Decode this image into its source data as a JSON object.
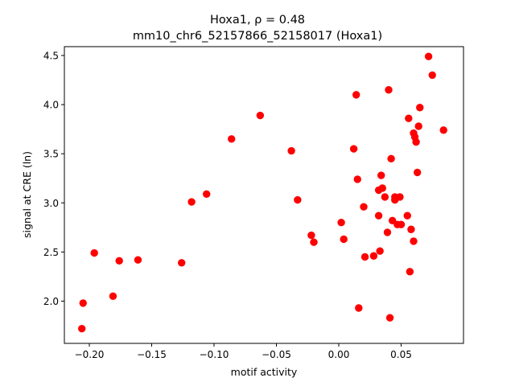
{
  "chart_data": {
    "type": "scatter",
    "title": "Hoxa1, ρ = 0.48",
    "subtitle": "mm10_chr6_52157866_52158017 (Hoxa1)",
    "xlabel": "motif activity",
    "ylabel": "signal at CRE (ln)",
    "xlim": [
      -0.22,
      0.1
    ],
    "ylim": [
      1.57,
      4.59
    ],
    "xticks": [
      -0.2,
      -0.15,
      -0.1,
      -0.05,
      0.0,
      0.05
    ],
    "xtick_labels": [
      "−0.20",
      "−0.15",
      "−0.10",
      "−0.05",
      "0.00",
      "0.05"
    ],
    "yticks": [
      2.0,
      2.5,
      3.0,
      3.5,
      4.0,
      4.5
    ],
    "ytick_labels": [
      "2.0",
      "2.5",
      "3.0",
      "3.5",
      "4.0",
      "4.5"
    ],
    "grid": false,
    "marker_color": "#ff0000",
    "points": [
      {
        "x": -0.206,
        "y": 1.72
      },
      {
        "x": -0.205,
        "y": 1.98
      },
      {
        "x": -0.196,
        "y": 2.49
      },
      {
        "x": -0.181,
        "y": 2.05
      },
      {
        "x": -0.176,
        "y": 2.41
      },
      {
        "x": -0.161,
        "y": 2.42
      },
      {
        "x": -0.126,
        "y": 2.39
      },
      {
        "x": -0.118,
        "y": 3.01
      },
      {
        "x": -0.106,
        "y": 3.09
      },
      {
        "x": -0.086,
        "y": 3.65
      },
      {
        "x": -0.063,
        "y": 3.89
      },
      {
        "x": -0.038,
        "y": 3.53
      },
      {
        "x": -0.033,
        "y": 3.03
      },
      {
        "x": -0.022,
        "y": 2.67
      },
      {
        "x": -0.02,
        "y": 2.6
      },
      {
        "x": 0.002,
        "y": 2.8
      },
      {
        "x": 0.004,
        "y": 2.63
      },
      {
        "x": 0.012,
        "y": 3.55
      },
      {
        "x": 0.014,
        "y": 4.1
      },
      {
        "x": 0.015,
        "y": 3.24
      },
      {
        "x": 0.016,
        "y": 1.93
      },
      {
        "x": 0.02,
        "y": 2.96
      },
      {
        "x": 0.021,
        "y": 2.45
      },
      {
        "x": 0.028,
        "y": 2.46
      },
      {
        "x": 0.032,
        "y": 2.87
      },
      {
        "x": 0.032,
        "y": 3.13
      },
      {
        "x": 0.033,
        "y": 2.51
      },
      {
        "x": 0.034,
        "y": 3.28
      },
      {
        "x": 0.035,
        "y": 3.15
      },
      {
        "x": 0.037,
        "y": 3.06
      },
      {
        "x": 0.039,
        "y": 2.7
      },
      {
        "x": 0.04,
        "y": 4.15
      },
      {
        "x": 0.041,
        "y": 1.83
      },
      {
        "x": 0.042,
        "y": 3.45
      },
      {
        "x": 0.043,
        "y": 2.82
      },
      {
        "x": 0.045,
        "y": 3.06
      },
      {
        "x": 0.045,
        "y": 3.03
      },
      {
        "x": 0.047,
        "y": 2.78
      },
      {
        "x": 0.049,
        "y": 3.06
      },
      {
        "x": 0.05,
        "y": 2.78
      },
      {
        "x": 0.055,
        "y": 2.87
      },
      {
        "x": 0.056,
        "y": 3.86
      },
      {
        "x": 0.057,
        "y": 2.3
      },
      {
        "x": 0.058,
        "y": 2.73
      },
      {
        "x": 0.06,
        "y": 2.61
      },
      {
        "x": 0.06,
        "y": 3.71
      },
      {
        "x": 0.061,
        "y": 3.67
      },
      {
        "x": 0.062,
        "y": 3.62
      },
      {
        "x": 0.063,
        "y": 3.31
      },
      {
        "x": 0.064,
        "y": 3.78
      },
      {
        "x": 0.065,
        "y": 3.97
      },
      {
        "x": 0.072,
        "y": 4.49
      },
      {
        "x": 0.075,
        "y": 4.3
      },
      {
        "x": 0.084,
        "y": 3.74
      }
    ]
  }
}
